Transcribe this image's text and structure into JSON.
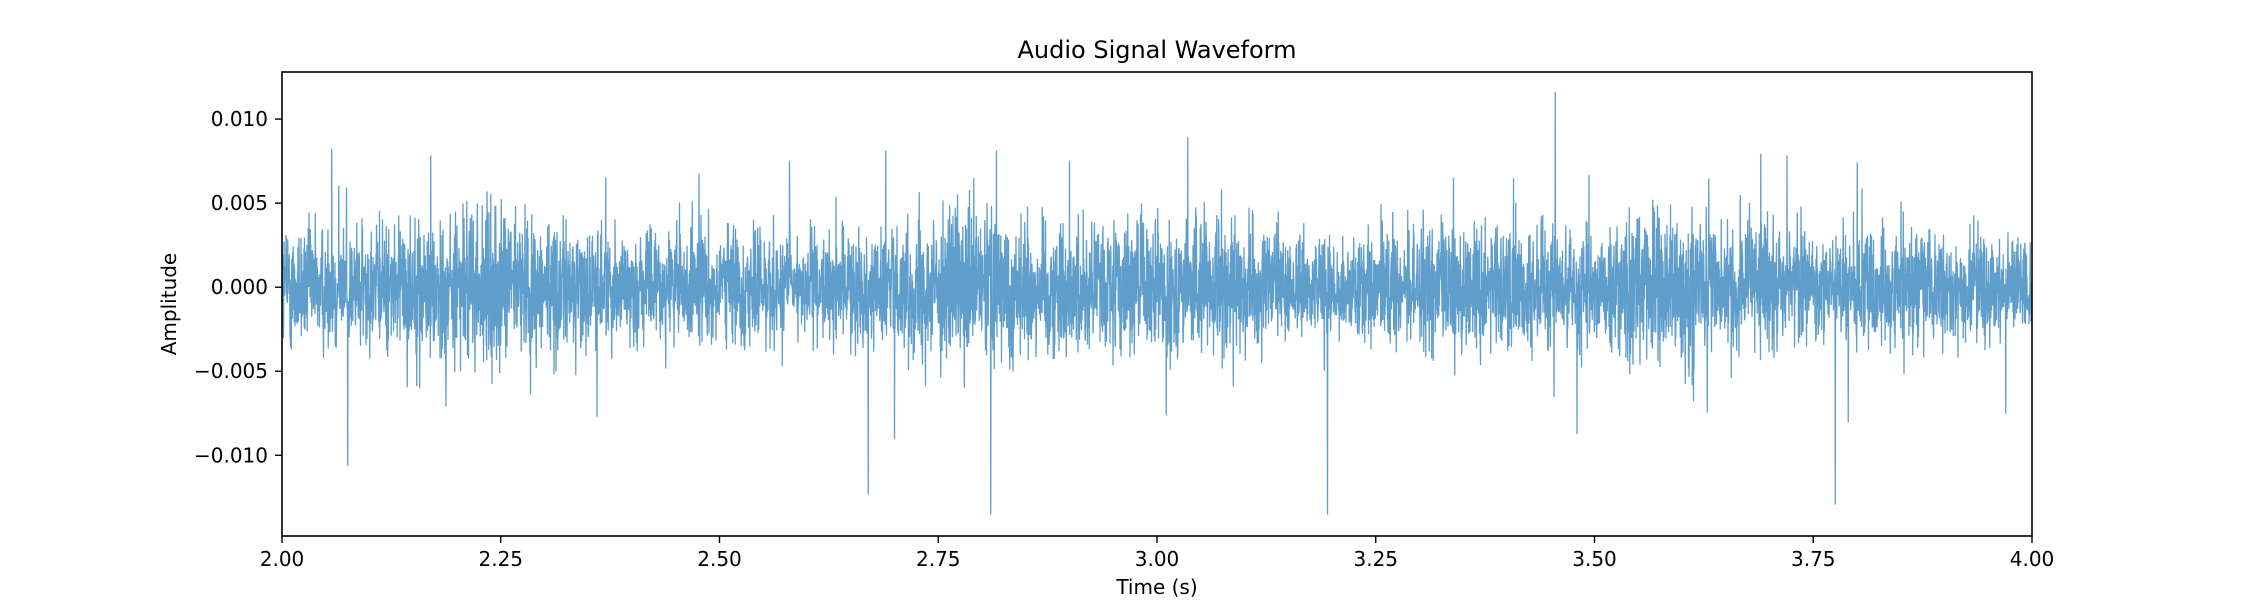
{
  "chart_data": {
    "type": "line",
    "title": "Audio Signal Waveform",
    "xlabel": "Time (s)",
    "ylabel": "Amplitude",
    "xlim": [
      2.0,
      4.0
    ],
    "ylim": [
      -0.0148,
      0.0128
    ],
    "grid": false,
    "legend": "none",
    "x_ticks": [
      2.0,
      2.25,
      2.5,
      2.75,
      3.0,
      3.25,
      3.5,
      3.75,
      4.0
    ],
    "x_tick_labels": [
      "2.00",
      "2.25",
      "2.50",
      "2.75",
      "3.00",
      "3.25",
      "3.50",
      "3.75",
      "4.00"
    ],
    "y_ticks": [
      0.01,
      0.005,
      0.0,
      -0.005,
      -0.01
    ],
    "y_tick_labels": [
      "0.010",
      "0.005",
      "0.000",
      "−0.005",
      "−0.010"
    ],
    "series": [
      {
        "color": "#5f9ecb",
        "noise_amplitude_typical": 0.003,
        "peaks": [
          {
            "x": 2.057,
            "y": 0.0082
          },
          {
            "x": 2.065,
            "y": 0.006
          },
          {
            "x": 2.075,
            "y": -0.0106
          },
          {
            "x": 2.17,
            "y": 0.0078
          },
          {
            "x": 2.36,
            "y": -0.0077
          },
          {
            "x": 2.37,
            "y": 0.0065
          },
          {
            "x": 2.58,
            "y": 0.0075
          },
          {
            "x": 2.67,
            "y": -0.0123
          },
          {
            "x": 2.69,
            "y": 0.0081
          },
          {
            "x": 2.7,
            "y": -0.009
          },
          {
            "x": 2.81,
            "y": -0.0135
          },
          {
            "x": 2.9,
            "y": 0.0075
          },
          {
            "x": 3.035,
            "y": 0.0089
          },
          {
            "x": 3.195,
            "y": -0.0135
          },
          {
            "x": 3.455,
            "y": 0.0116
          },
          {
            "x": 3.48,
            "y": -0.0087
          },
          {
            "x": 3.69,
            "y": 0.0079
          },
          {
            "x": 3.72,
            "y": 0.0078
          },
          {
            "x": 3.775,
            "y": -0.0129
          },
          {
            "x": 3.79,
            "y": -0.008
          },
          {
            "x": 3.97,
            "y": -0.0075
          }
        ]
      }
    ]
  }
}
